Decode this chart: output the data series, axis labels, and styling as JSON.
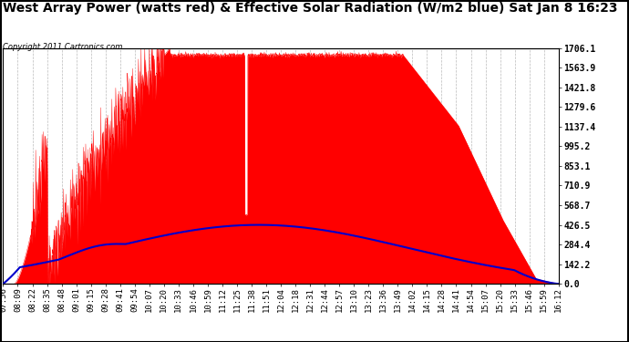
{
  "title": "West Array Power (watts red) & Effective Solar Radiation (W/m2 blue) Sat Jan 8 16:23",
  "copyright": "Copyright 2011 Cartronics.com",
  "ylabel_right": [
    "1706.1",
    "1563.9",
    "1421.8",
    "1279.6",
    "1137.4",
    "995.2",
    "853.1",
    "710.9",
    "568.7",
    "426.5",
    "284.4",
    "142.2",
    "0.0"
  ],
  "ymax": 1706.1,
  "ymin": 0.0,
  "background_color": "#ffffff",
  "plot_bg_color": "#ffffff",
  "grid_color": "#bbbbbb",
  "red_color": "#ff0000",
  "blue_color": "#0000cc",
  "title_fontsize": 10,
  "copyright_fontsize": 6,
  "tick_fontsize": 6.5,
  "x_labels": [
    "07:56",
    "08:09",
    "08:22",
    "08:35",
    "08:48",
    "09:01",
    "09:15",
    "09:28",
    "09:41",
    "09:54",
    "10:07",
    "10:20",
    "10:33",
    "10:46",
    "10:59",
    "11:12",
    "11:25",
    "11:38",
    "11:51",
    "12:04",
    "12:18",
    "12:31",
    "12:44",
    "12:57",
    "13:10",
    "13:23",
    "13:36",
    "13:49",
    "14:02",
    "14:15",
    "14:28",
    "14:41",
    "14:54",
    "15:07",
    "15:20",
    "15:33",
    "15:46",
    "15:59",
    "16:12"
  ]
}
